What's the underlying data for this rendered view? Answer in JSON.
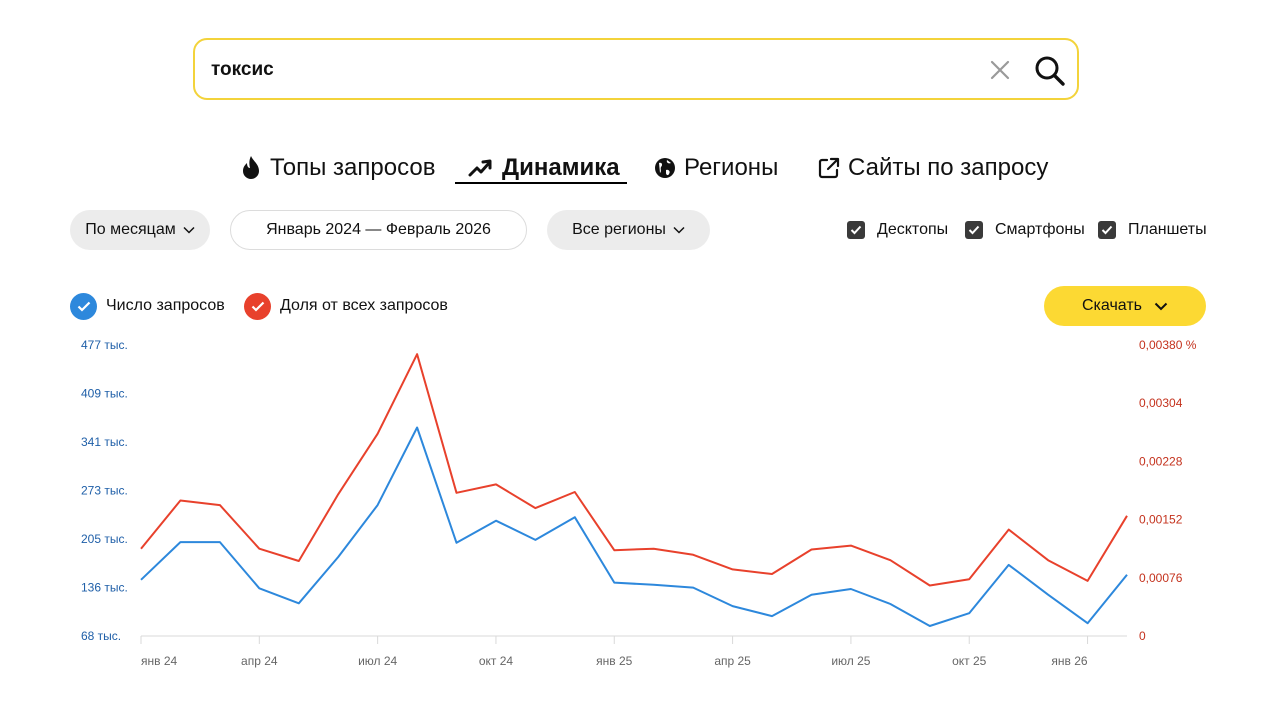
{
  "search": {
    "query": "токсис"
  },
  "tabs": [
    {
      "label": "Топы запросов",
      "icon": "flame-icon"
    },
    {
      "label": "Динамика",
      "icon": "trend-arrow-icon",
      "active": true
    },
    {
      "label": "Регионы",
      "icon": "globe-icon"
    },
    {
      "label": "Сайты по запросу",
      "icon": "external-link-icon"
    }
  ],
  "filters": {
    "period": "По месяцам",
    "date_range": "Январь 2024 — Февраль 2026",
    "region": "Все регионы"
  },
  "devices": [
    {
      "label": "Десктопы",
      "checked": true
    },
    {
      "label": "Смартфоны",
      "checked": true
    },
    {
      "label": "Планшеты",
      "checked": true
    }
  ],
  "legend": {
    "count": "Число запросов",
    "share": "Доля от всех запросов"
  },
  "download_label": "Скачать",
  "colors": {
    "count": "#2d88dc",
    "share": "#e8412c",
    "accent": "#fcd933",
    "search_border": "#f3d33b",
    "count_axis": "#1f5fa8",
    "share_axis": "#c4321d"
  },
  "chart_data": {
    "type": "line",
    "x": [
      "2024-01",
      "2024-02",
      "2024-03",
      "2024-04",
      "2024-05",
      "2024-06",
      "2024-07",
      "2024-08",
      "2024-09",
      "2024-10",
      "2024-11",
      "2024-12",
      "2025-01",
      "2025-02",
      "2025-03",
      "2025-04",
      "2025-05",
      "2025-06",
      "2025-07",
      "2025-08",
      "2025-09",
      "2025-10",
      "2025-11",
      "2025-12",
      "2026-01",
      "2026-02"
    ],
    "x_tick_labels": [
      "янв 24",
      "апр 24",
      "июл 24",
      "окт 24",
      "янв 25",
      "апр 25",
      "июл 25",
      "окт 25",
      "янв 26"
    ],
    "series": [
      {
        "name": "Число запросов",
        "axis": "left",
        "values": [
          147000,
          200000,
          200000,
          135000,
          114000,
          179000,
          252000,
          361000,
          199000,
          230000,
          203000,
          235000,
          143000,
          140000,
          136000,
          110000,
          96000,
          126000,
          134000,
          113000,
          82000,
          100000,
          168000,
          126000,
          86000,
          154000
        ]
      },
      {
        "name": "Доля от всех запросов",
        "axis": "right",
        "values": [
          0.00114,
          0.00177,
          0.00171,
          0.00114,
          0.00098,
          0.00185,
          0.00264,
          0.00368,
          0.00187,
          0.00198,
          0.00167,
          0.00188,
          0.00112,
          0.00114,
          0.00106,
          0.00087,
          0.00081,
          0.00113,
          0.00118,
          0.00099,
          0.00066,
          0.00074,
          0.00139,
          0.00099,
          0.00072,
          0.00157
        ]
      }
    ],
    "y_left": {
      "min": 68000,
      "max": 477000,
      "ticks": [
        "68 тыс.",
        "136 тыс.",
        "205 тыс.",
        "273 тыс.",
        "341 тыс.",
        "409 тыс.",
        "477 тыс."
      ]
    },
    "y_right": {
      "min": 0,
      "max": 0.0038,
      "ticks": [
        "0",
        "0,00076",
        "0,00152",
        "0,00228",
        "0,00304",
        "0,00380 %"
      ]
    },
    "grid": false
  }
}
